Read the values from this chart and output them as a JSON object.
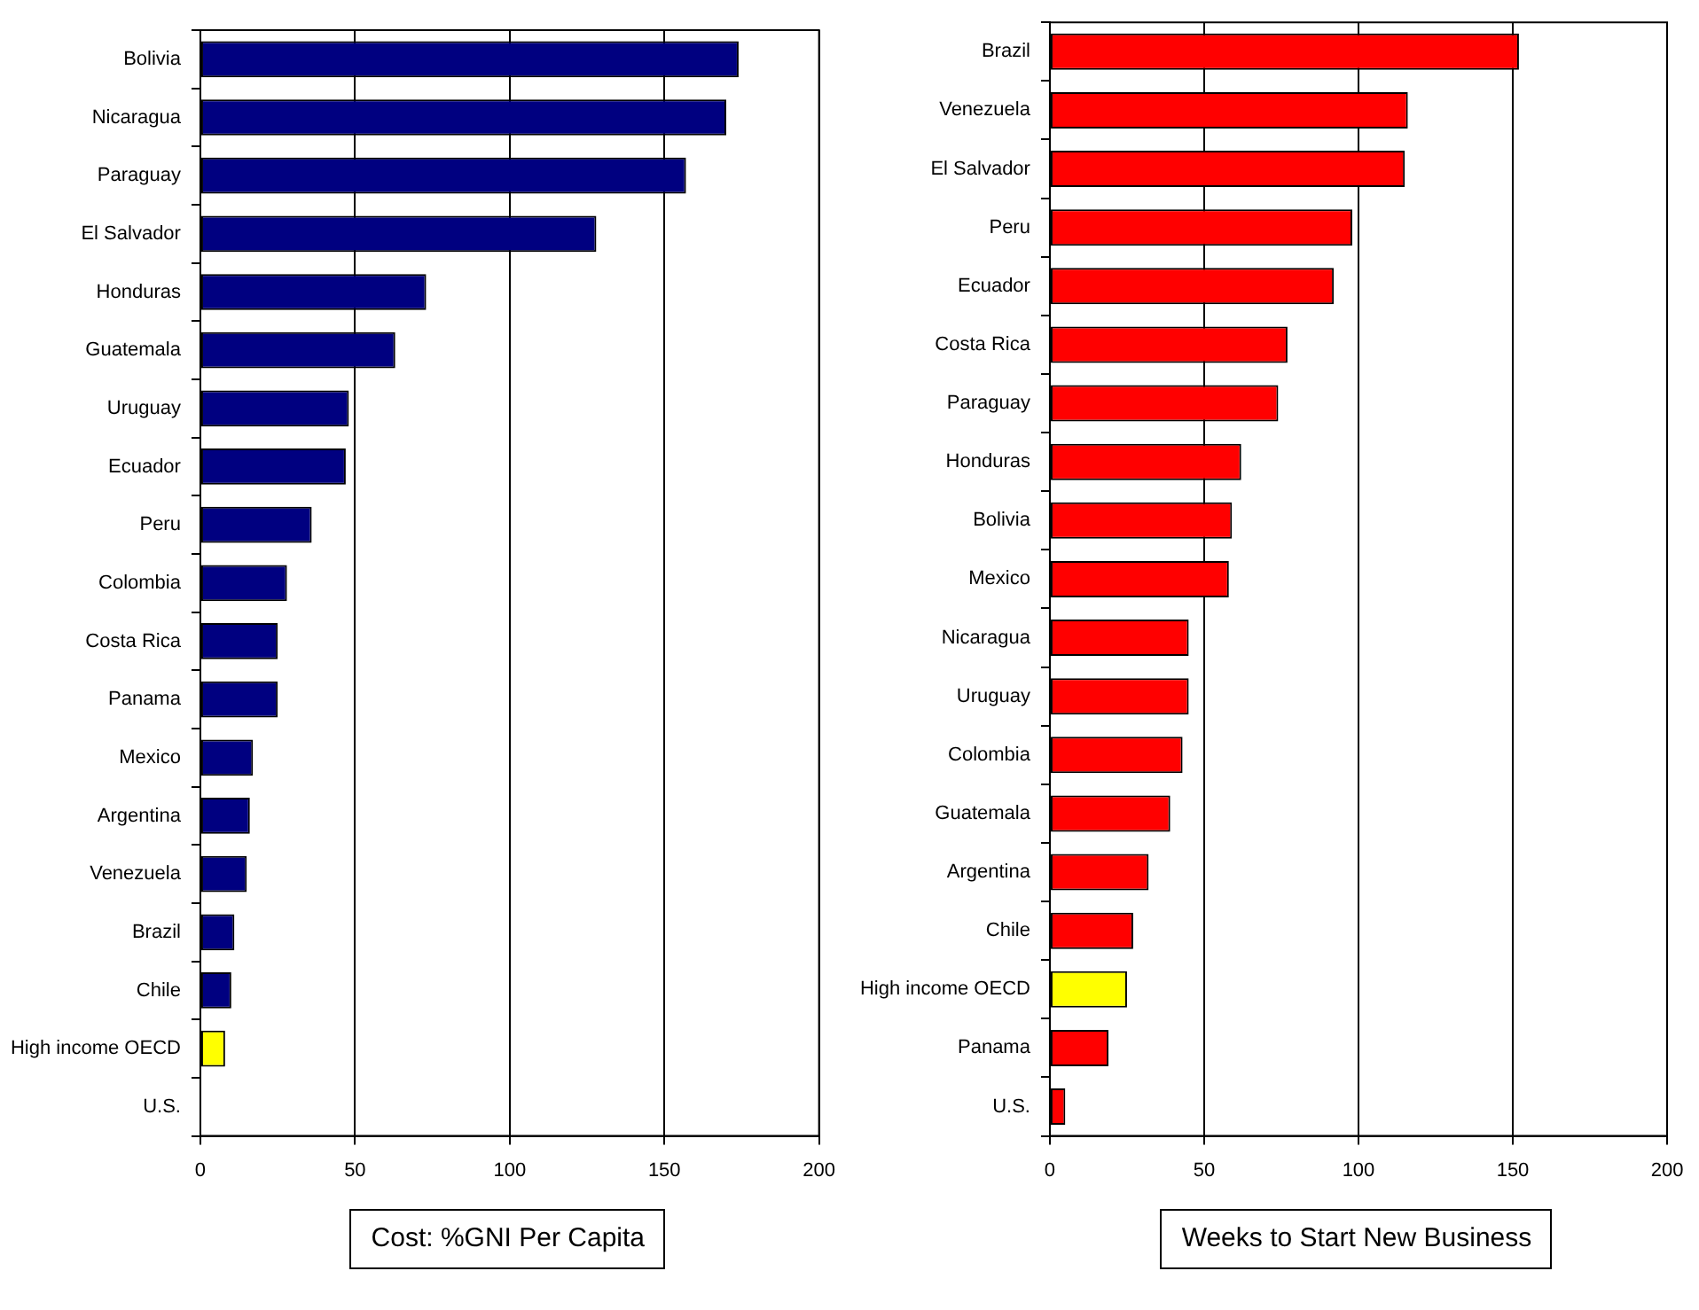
{
  "chart_data": [
    {
      "type": "bar",
      "orientation": "horizontal",
      "title": "Cost: %GNI Per Capita",
      "categories": [
        "Bolivia",
        "Nicaragua",
        "Paraguay",
        "El Salvador",
        "Honduras",
        "Guatemala",
        "Uruguay",
        "Ecuador",
        "Peru",
        "Colombia",
        "Costa Rica",
        "Panama",
        "Mexico",
        "Argentina",
        "Venezuela",
        "Brazil",
        "Chile",
        "High income OECD",
        "U.S."
      ],
      "values": [
        174,
        170,
        157,
        128,
        73,
        63,
        48,
        47,
        36,
        28,
        25,
        25,
        17,
        16,
        15,
        11,
        10,
        8,
        0
      ],
      "colors": [
        "#000080",
        "#000080",
        "#000080",
        "#000080",
        "#000080",
        "#000080",
        "#000080",
        "#000080",
        "#000080",
        "#000080",
        "#000080",
        "#000080",
        "#000080",
        "#000080",
        "#000080",
        "#000080",
        "#000080",
        "#ffff00",
        "#000080"
      ],
      "xlim": [
        0,
        200
      ],
      "xticks": [
        0,
        50,
        100,
        150,
        200
      ],
      "grid": "x",
      "legend": false
    },
    {
      "type": "bar",
      "orientation": "horizontal",
      "title": "Weeks to Start New Business",
      "categories": [
        "Brazil",
        "Venezuela",
        "El Salvador",
        "Peru",
        "Ecuador",
        "Costa Rica",
        "Paraguay",
        "Honduras",
        "Bolivia",
        "Mexico",
        "Nicaragua",
        "Uruguay",
        "Colombia",
        "Guatemala",
        "Argentina",
        "Chile",
        "High income OECD",
        "Panama",
        "U.S."
      ],
      "values": [
        152,
        116,
        115,
        98,
        92,
        77,
        74,
        62,
        59,
        58,
        45,
        45,
        43,
        39,
        32,
        27,
        25,
        19,
        5
      ],
      "colors": [
        "#ff0000",
        "#ff0000",
        "#ff0000",
        "#ff0000",
        "#ff0000",
        "#ff0000",
        "#ff0000",
        "#ff0000",
        "#ff0000",
        "#ff0000",
        "#ff0000",
        "#ff0000",
        "#ff0000",
        "#ff0000",
        "#ff0000",
        "#ff0000",
        "#ffff00",
        "#ff0000",
        "#ff0000"
      ],
      "xlim": [
        0,
        200
      ],
      "xticks": [
        0,
        50,
        100,
        150,
        200
      ],
      "grid": "x",
      "legend": false
    }
  ]
}
